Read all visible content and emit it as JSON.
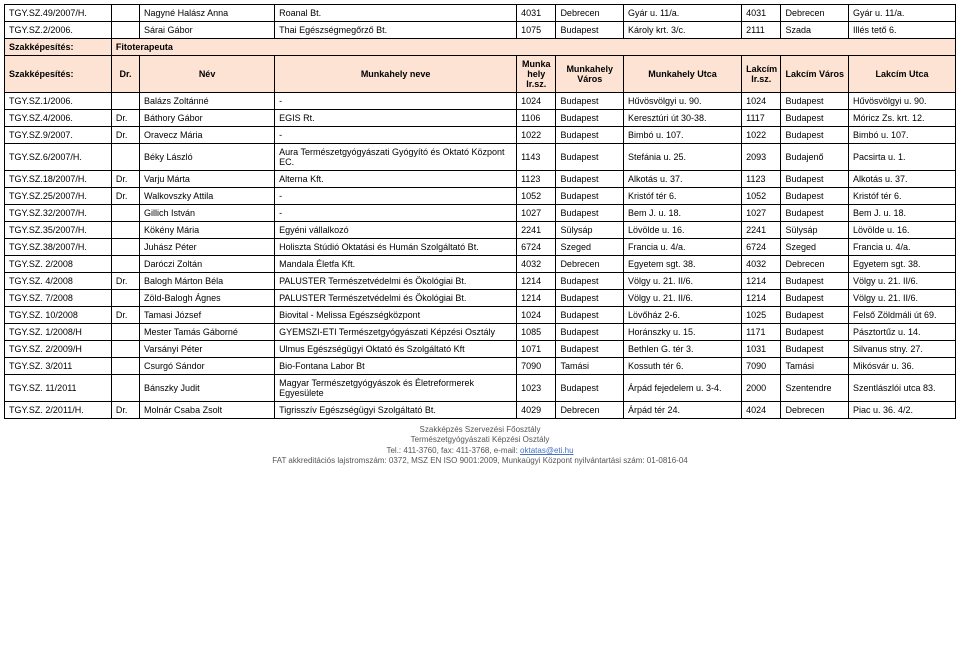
{
  "top_rows": [
    {
      "id": "TGY.SZ.49/2007/H.",
      "pre": "",
      "name": "Nagyné Halász Anna",
      "work": "Roanal Bt.",
      "irsz": "4031",
      "varos": "Debrecen",
      "utca": "Gyár u. 11/a.",
      "irsz2": "4031",
      "varos2": "Debrecen",
      "utca2": "Gyár u. 11/a."
    },
    {
      "id": "TGY.SZ.2/2006.",
      "pre": "",
      "name": "Sárai Gábor",
      "work": "Thai Egészségmegőrző Bt.",
      "irsz": "1075",
      "varos": "Budapest",
      "utca": "Károly krt. 3/c.",
      "irsz2": "2111",
      "varos2": "Szada",
      "utca2": "Illés tető 6."
    }
  ],
  "section": {
    "label1": "Szakképesítés:",
    "group": "Fitoterapeuta",
    "label2": "Szakképesítés:",
    "pre_hdr": "Dr.",
    "name_hdr": "Név",
    "work_hdr": "Munkahely neve",
    "irsz_hdr": "Munka hely Ir.sz.",
    "varos_hdr": "Munkahely Város",
    "utca_hdr": "Munkahely Utca",
    "irsz2_hdr": "Lakcím Ir.sz.",
    "varos2_hdr": "Lakcím Város",
    "utca2_hdr": "Lakcím Utca"
  },
  "rows": [
    {
      "id": "TGY.SZ.1/2006.",
      "pre": "",
      "name": "Balázs Zoltánné",
      "work": "-",
      "irsz": "1024",
      "varos": "Budapest",
      "utca": "Hűvösvölgyi u. 90.",
      "irsz2": "1024",
      "varos2": "Budapest",
      "utca2": "Hűvösvölgyi u. 90."
    },
    {
      "id": "TGY.SZ.4/2006.",
      "pre": "Dr.",
      "name": "Báthory Gábor",
      "work": "EGIS Rt.",
      "irsz": "1106",
      "varos": "Budapest",
      "utca": "Keresztúri út 30-38.",
      "irsz2": "1117",
      "varos2": "Budapest",
      "utca2": "Móricz Zs. krt. 12."
    },
    {
      "id": "TGY.SZ.9/2007.",
      "pre": "Dr.",
      "name": "Oravecz Mária",
      "work": "-",
      "irsz": "1022",
      "varos": "Budapest",
      "utca": "Bimbó u. 107.",
      "irsz2": "1022",
      "varos2": "Budapest",
      "utca2": "Bimbó u. 107."
    },
    {
      "id": "TGY.SZ.6/2007/H.",
      "pre": "",
      "name": "Béky László",
      "work": "Aura Természetgyógyászati Gyógyító és Oktató Központ EC.",
      "irsz": "1143",
      "varos": "Budapest",
      "utca": "Stefánia u. 25.",
      "irsz2": "2093",
      "varos2": "Budajenő",
      "utca2": "Pacsirta u. 1."
    },
    {
      "id": "TGY.SZ.18/2007/H.",
      "pre": "Dr.",
      "name": "Varju Márta",
      "work": "Alterna Kft.",
      "irsz": "1123",
      "varos": "Budapest",
      "utca": "Alkotás u. 37.",
      "irsz2": "1123",
      "varos2": "Budapest",
      "utca2": "Alkotás u. 37."
    },
    {
      "id": "TGY.SZ.25/2007/H.",
      "pre": "Dr.",
      "name": "Walkovszky Attila",
      "work": "-",
      "irsz": "1052",
      "varos": "Budapest",
      "utca": "Kristóf tér 6.",
      "irsz2": "1052",
      "varos2": "Budapest",
      "utca2": "Kristóf tér 6."
    },
    {
      "id": "TGY.SZ.32/2007/H.",
      "pre": "",
      "name": "Gillich István",
      "work": "-",
      "irsz": "1027",
      "varos": "Budapest",
      "utca": "Bem J. u. 18.",
      "irsz2": "1027",
      "varos2": "Budapest",
      "utca2": "Bem J. u. 18."
    },
    {
      "id": "TGY.SZ.35/2007/H.",
      "pre": "",
      "name": "Kökény Mária",
      "work": "Egyéni vállalkozó",
      "irsz": "2241",
      "varos": "Sülysáp",
      "utca": "Lövölde u. 16.",
      "irsz2": "2241",
      "varos2": "Sülysáp",
      "utca2": "Lövölde u. 16."
    },
    {
      "id": "TGY.SZ.38/2007/H.",
      "pre": "",
      "name": "Juhász Péter",
      "work": "Holiszta Stúdió Oktatási és Humán Szolgáltató Bt.",
      "irsz": "6724",
      "varos": "Szeged",
      "utca": "Francia u. 4/a.",
      "irsz2": "6724",
      "varos2": "Szeged",
      "utca2": "Francia u. 4/a."
    },
    {
      "id": "TGY.SZ. 2/2008",
      "pre": "",
      "name": "Daróczi Zoltán",
      "work": "Mandala Életfa Kft.",
      "irsz": "4032",
      "varos": "Debrecen",
      "utca": "Egyetem sgt. 38.",
      "irsz2": "4032",
      "varos2": "Debrecen",
      "utca2": "Egyetem sgt. 38."
    },
    {
      "id": "TGY.SZ. 4/2008",
      "pre": "Dr.",
      "name": "Balogh Márton Béla",
      "work": "PALUSTER Természetvédelmi és Ökológiai Bt.",
      "irsz": "1214",
      "varos": "Budapest",
      "utca": "Völgy u. 21. II/6.",
      "irsz2": "1214",
      "varos2": "Budapest",
      "utca2": "Völgy u. 21. II/6."
    },
    {
      "id": "TGY.SZ. 7/2008",
      "pre": "",
      "name": "Zöld-Balogh Ágnes",
      "work": "PALUSTER Természetvédelmi és Ökológiai Bt.",
      "irsz": "1214",
      "varos": "Budapest",
      "utca": "Völgy u. 21. II/6.",
      "irsz2": "1214",
      "varos2": "Budapest",
      "utca2": "Völgy u. 21. II/6."
    },
    {
      "id": "TGY.SZ. 10/2008",
      "pre": "Dr.",
      "name": "Tamasi József",
      "work": "Biovital - Melissa Egészségközpont",
      "irsz": "1024",
      "varos": "Budapest",
      "utca": "Lövőház 2-6.",
      "irsz2": "1025",
      "varos2": "Budapest",
      "utca2": "Felső Zöldmáli út 69."
    },
    {
      "id": "TGY.SZ. 1/2008/H",
      "pre": "",
      "name": "Mester Tamás Gáborné",
      "work": "GYEMSZI-ETI Természetgyógyászati Képzési Osztály",
      "irsz": "1085",
      "varos": "Budapest",
      "utca": "Horánszky u. 15.",
      "irsz2": "1171",
      "varos2": "Budapest",
      "utca2": "Pásztortűz u. 14."
    },
    {
      "id": "TGY.SZ. 2/2009/H",
      "pre": "",
      "name": "Varsányi Péter",
      "work": "Ulmus Egészségügyi Oktató és Szolgáltató Kft",
      "irsz": "1071",
      "varos": "Budapest",
      "utca": "Bethlen G. tér 3.",
      "irsz2": "1031",
      "varos2": "Budapest",
      "utca2": "Silvanus stny. 27."
    },
    {
      "id": "TGY.SZ. 3/2011",
      "pre": "",
      "name": "Csurgó Sándor",
      "work": "Bio-Fontana Labor Bt",
      "irsz": "7090",
      "varos": "Tamási",
      "utca": "Kossuth tér 6.",
      "irsz2": "7090",
      "varos2": "Tamási",
      "utca2": "Mikósvár u. 36."
    },
    {
      "id": "TGY.SZ. 11/2011",
      "pre": "",
      "name": "Bánszky Judit",
      "work": "Magyar Természetgyógyászok és Életreformerek Egyesülete",
      "irsz": "1023",
      "varos": "Budapest",
      "utca": "Árpád fejedelem u. 3-4.",
      "irsz2": "2000",
      "varos2": "Szentendre",
      "utca2": "Szentlászlói utca 83."
    },
    {
      "id": "TGY.SZ. 2/2011/H.",
      "pre": "Dr.",
      "name": "Molnár Csaba Zsolt",
      "work": "Tigrisszív Egészségügyi Szolgáltató Bt.",
      "irsz": "4029",
      "varos": "Debrecen",
      "utca": "Árpád tér 24.",
      "irsz2": "4024",
      "varos2": "Debrecen",
      "utca2": "Piac u. 36. 4/2."
    }
  ],
  "footer": {
    "line1": "Szakképzés Szervezési Főosztály",
    "line2": "Természetgyógyászati Képzési Osztály",
    "line3_pre": "Tel.: 411-3760, fax: 411-3768, e-mail: ",
    "line3_link": "oktatas@eti.hu",
    "line4": "FAT akkreditációs lajstromszám: 0372, MSZ EN ISO 9001:2009, Munkaügyi Központ nyilvántartási szám: 01-0816-04"
  }
}
